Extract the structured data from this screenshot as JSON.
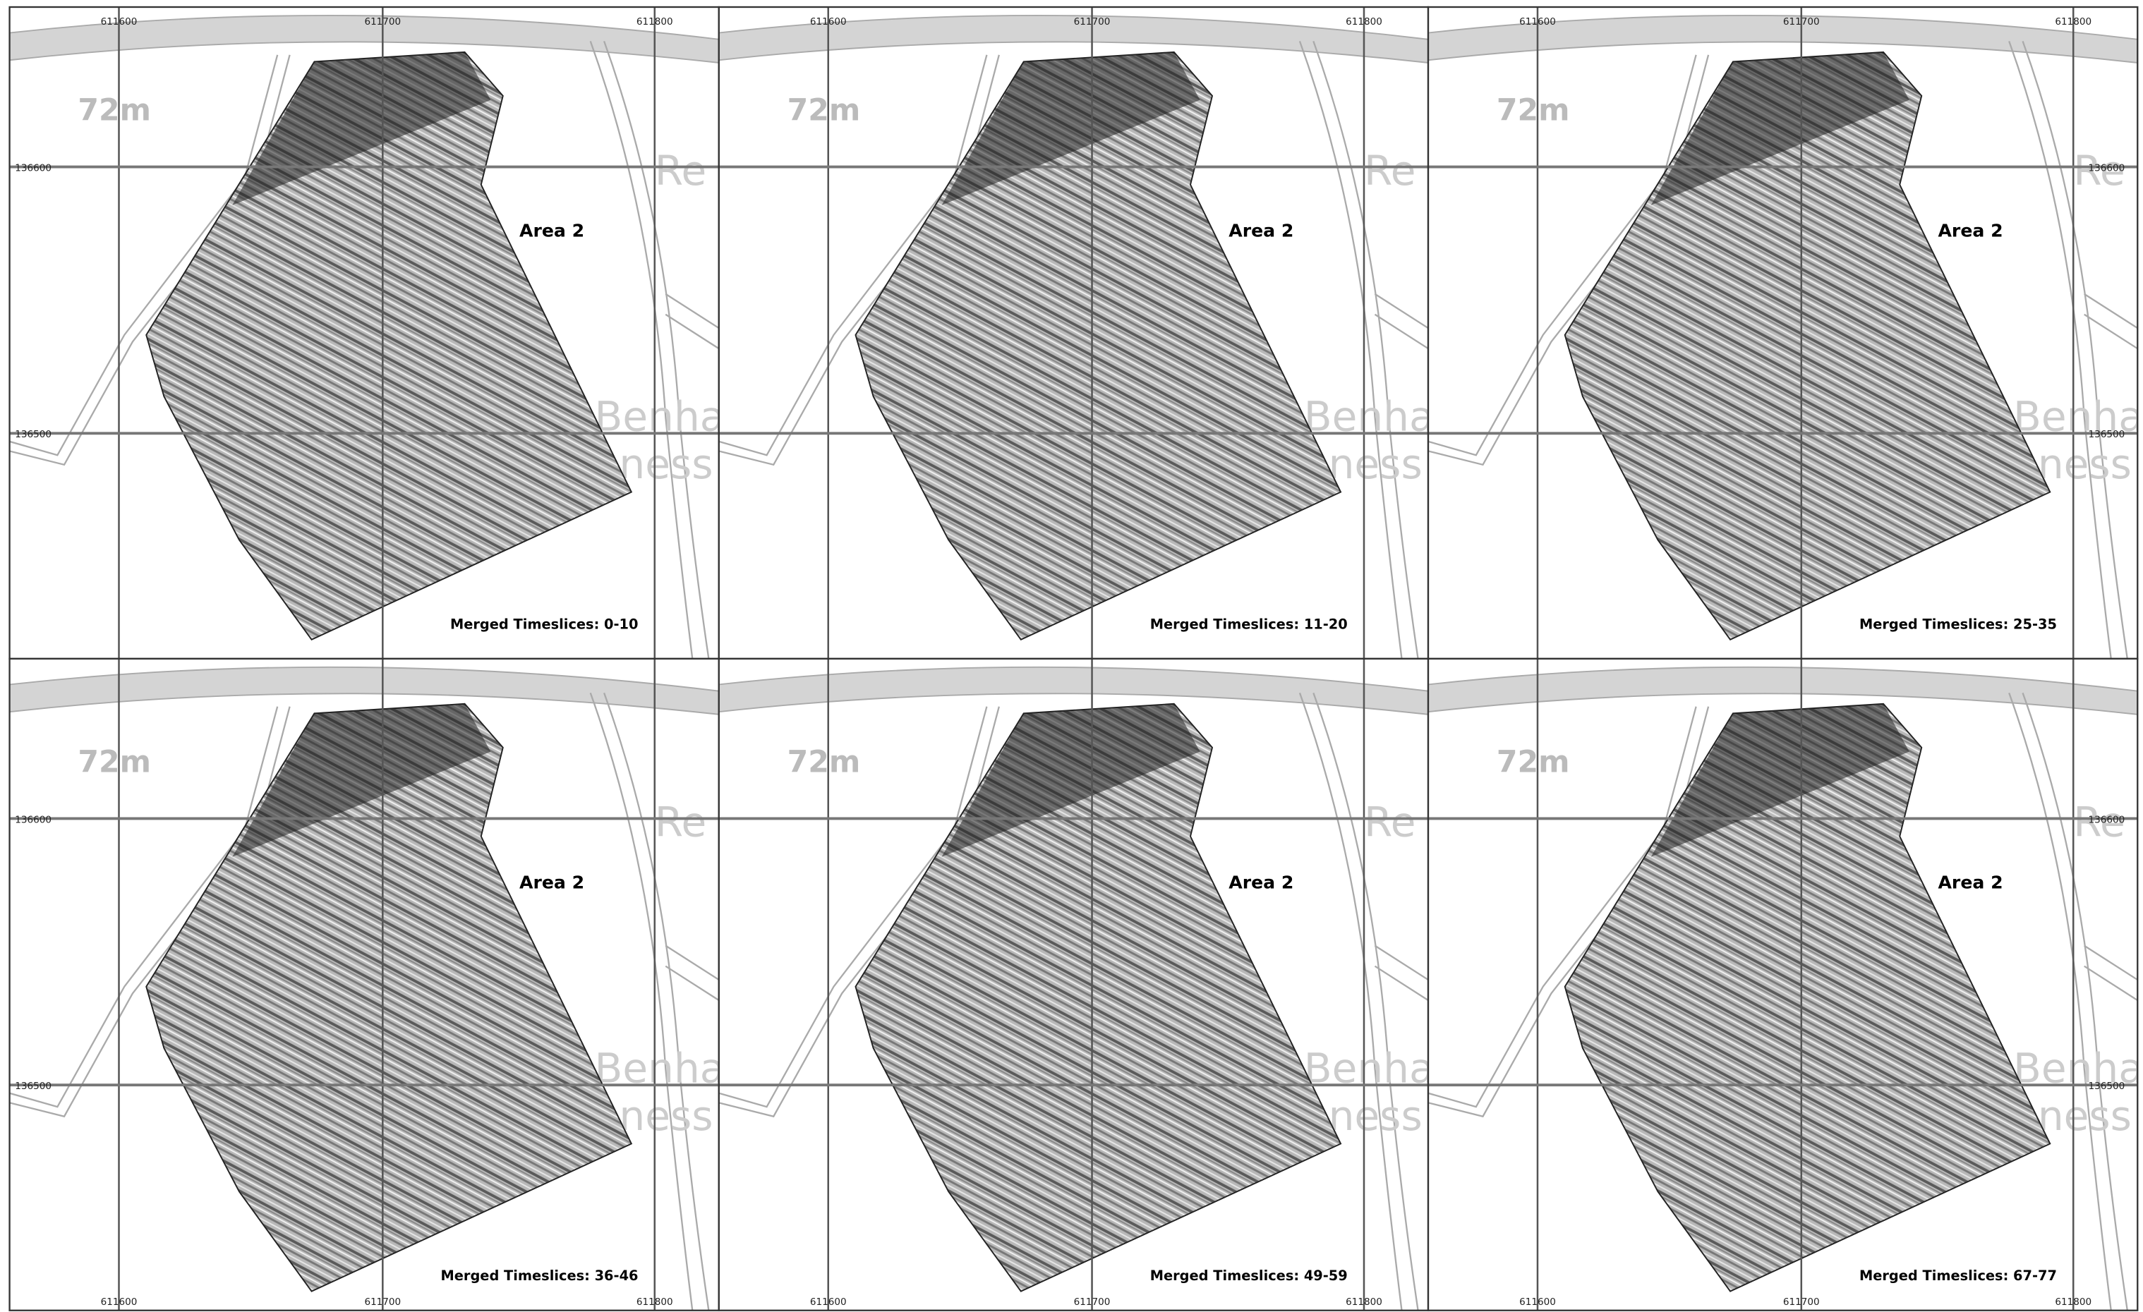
{
  "panels": [
    {
      "caption": "Merged Timeslices: 0-10",
      "x_labels": [
        "611600",
        "611700",
        "611800"
      ],
      "y_labels": [
        "136600",
        "136500"
      ]
    },
    {
      "caption": "Merged Timeslices: 11-20",
      "x_labels": [
        "611600",
        "611700",
        "611800"
      ]
    },
    {
      "caption": "Merged Timeslices: 25-35",
      "x_labels": [
        "611600",
        "611700",
        "611800"
      ],
      "y_labels": [
        "136600",
        "136500"
      ]
    },
    {
      "caption": "Merged Timeslices: 36-46",
      "x_labels": [
        "611600",
        "611700",
        "611800"
      ],
      "y_labels": [
        "136600",
        "136500"
      ]
    },
    {
      "caption": "Merged Timeslices: 49-59",
      "x_labels": [
        "611600",
        "611700",
        "611800"
      ]
    },
    {
      "caption": "Merged Timeslices: 67-77",
      "x_labels": [
        "611600",
        "611700",
        "611800"
      ],
      "y_labels": [
        "136600",
        "136500"
      ]
    }
  ],
  "area_label": "Area 2",
  "map_labels": {
    "elevation": "72m",
    "road": "Re",
    "place_top": "Benha",
    "place_bottom": "ness"
  }
}
